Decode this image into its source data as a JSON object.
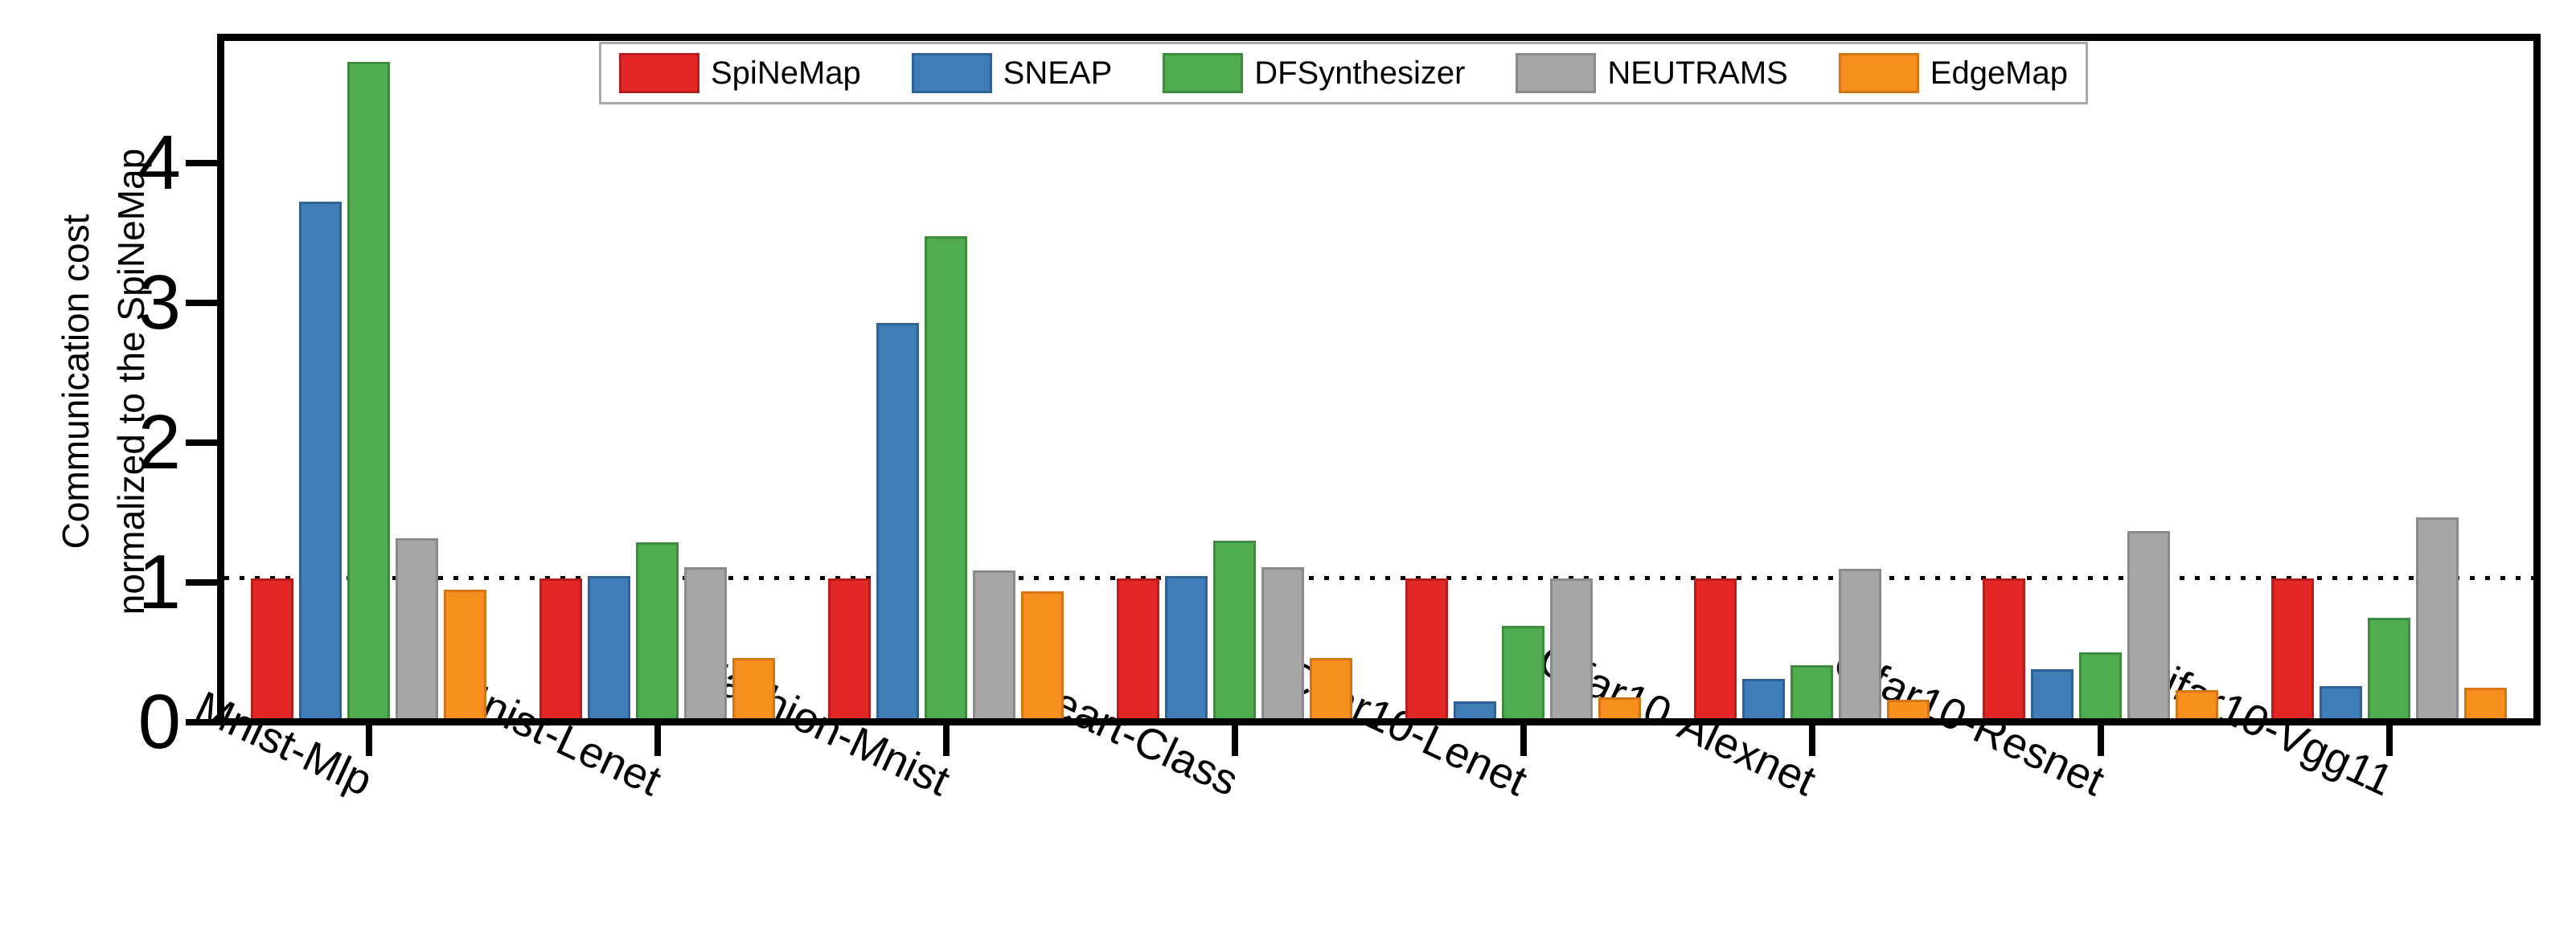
{
  "figure": {
    "y_axis_label_line1": "Communication cost",
    "y_axis_label_line2": "normalized to the SpiNeMap"
  },
  "chart_data": {
    "type": "bar",
    "title": "",
    "xlabel": "",
    "ylabel": "Communication cost normalized to the SpiNeMap",
    "ylim": [
      0,
      4.85
    ],
    "yticks": [
      0,
      1,
      2,
      3,
      4
    ],
    "reference_line_y": 1.0,
    "grid": false,
    "legend_position": "top-center-inside",
    "categories": [
      "Mnist-Mlp",
      "Mnist-Lenet",
      "Fashion-Mnist",
      "Heart-Class",
      "Cifar10-Lenet",
      "Cifar10-Alexnet",
      "Cifar10-Resnet",
      "Cifar10-Vgg11"
    ],
    "series": [
      {
        "name": "SpiNeMap",
        "color": "#e32626",
        "edge": "#b71d1d",
        "values": [
          1.0,
          1.0,
          1.0,
          1.0,
          1.0,
          1.0,
          1.0,
          1.0
        ]
      },
      {
        "name": "SNEAP",
        "color": "#3e7db8",
        "edge": "#2f6396",
        "values": [
          3.7,
          1.02,
          2.83,
          1.02,
          0.12,
          0.28,
          0.35,
          0.23
        ]
      },
      {
        "name": "DFSynthesizer",
        "color": "#4fad50",
        "edge": "#3d8c3e",
        "values": [
          4.7,
          1.26,
          3.45,
          1.27,
          0.66,
          0.38,
          0.47,
          0.72
        ]
      },
      {
        "name": "NEUTRAMS",
        "color": "#a6a6a6",
        "edge": "#8a8a8a",
        "values": [
          1.29,
          1.08,
          1.06,
          1.08,
          1.0,
          1.07,
          1.34,
          1.44
        ]
      },
      {
        "name": "EdgeMap",
        "color": "#f78f1e",
        "edge": "#d57512",
        "values": [
          0.92,
          0.43,
          0.91,
          0.43,
          0.15,
          0.13,
          0.2,
          0.22
        ]
      }
    ]
  }
}
